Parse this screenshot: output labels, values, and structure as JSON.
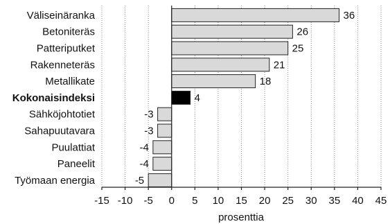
{
  "chart_data": {
    "type": "bar",
    "orientation": "horizontal",
    "categories": [
      "Väliseinäranka",
      "Betoniteräs",
      "Patteriputket",
      "Rakenneteräs",
      "Metallikate",
      "Kokonaisindeksi",
      "Sähköjohtotiet",
      "Sahapuutavara",
      "Puulattiat",
      "Paneelit",
      "Työmaan energia"
    ],
    "values": [
      36,
      26,
      25,
      21,
      18,
      4,
      -3,
      -3,
      -4,
      -4,
      -5
    ],
    "value_labels": [
      "36",
      "26",
      "25",
      "21",
      "18",
      "4",
      "-3",
      "-3",
      "-4",
      "-4",
      "-5"
    ],
    "highlight_category": "Kokonaisindeksi",
    "xlabel": "prosenttia",
    "ylabel": "",
    "title": "",
    "xlim": [
      -15,
      45
    ],
    "xticks": [
      -15,
      -10,
      -5,
      0,
      5,
      10,
      15,
      20,
      25,
      30,
      35,
      40,
      45
    ],
    "xtick_labels": [
      "-15",
      "-10",
      "-5",
      "0",
      "5",
      "10",
      "15",
      "20",
      "25",
      "30",
      "35",
      "40",
      "45"
    ],
    "grid": "vertical-dotted",
    "colors": {
      "bar_fill": "#d9d9d9",
      "bar_stroke": "#222222",
      "highlight_fill": "#000000"
    }
  }
}
